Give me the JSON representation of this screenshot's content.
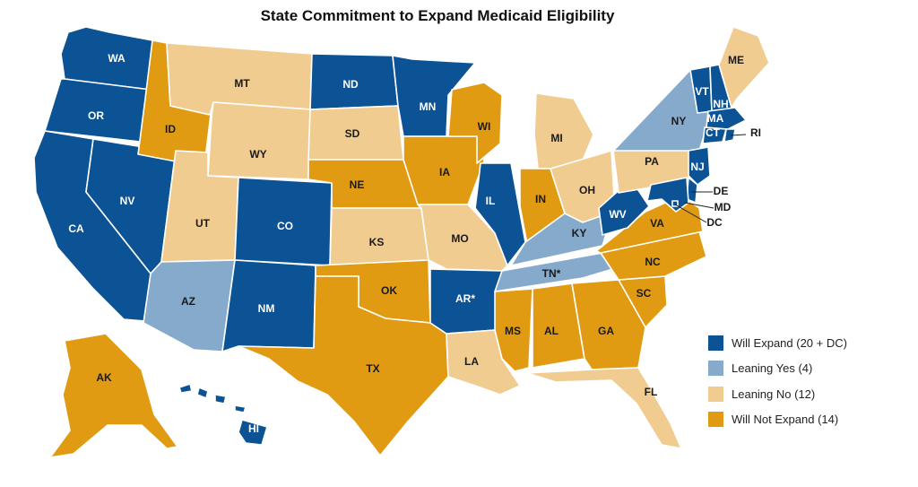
{
  "title": "State Commitment to Expand Medicaid Eligibility",
  "colors": {
    "will_expand": "#0b5394",
    "leaning_yes": "#86aacc",
    "leaning_no": "#f1cc91",
    "will_not_expand": "#e09b13"
  },
  "legend": [
    {
      "category": "will_expand",
      "label": "Will Expand (20 + DC)"
    },
    {
      "category": "leaning_yes",
      "label": "Leaning Yes (4)"
    },
    {
      "category": "leaning_no",
      "label": "Leaning No (12)"
    },
    {
      "category": "will_not_expand",
      "label": "Will Not Expand (14)"
    }
  ],
  "states": [
    {
      "id": "WA",
      "label": "WA",
      "category": "will_expand"
    },
    {
      "id": "OR",
      "label": "OR",
      "category": "will_expand"
    },
    {
      "id": "CA",
      "label": "CA",
      "category": "will_expand"
    },
    {
      "id": "NV",
      "label": "NV",
      "category": "will_expand"
    },
    {
      "id": "ID",
      "label": "ID",
      "category": "will_not_expand"
    },
    {
      "id": "MT",
      "label": "MT",
      "category": "leaning_no"
    },
    {
      "id": "WY",
      "label": "WY",
      "category": "leaning_no"
    },
    {
      "id": "UT",
      "label": "UT",
      "category": "leaning_no"
    },
    {
      "id": "AZ",
      "label": "AZ",
      "category": "leaning_yes"
    },
    {
      "id": "CO",
      "label": "CO",
      "category": "will_expand"
    },
    {
      "id": "NM",
      "label": "NM",
      "category": "will_expand"
    },
    {
      "id": "ND",
      "label": "ND",
      "category": "will_expand"
    },
    {
      "id": "SD",
      "label": "SD",
      "category": "leaning_no"
    },
    {
      "id": "NE",
      "label": "NE",
      "category": "will_not_expand"
    },
    {
      "id": "KS",
      "label": "KS",
      "category": "leaning_no"
    },
    {
      "id": "OK",
      "label": "OK",
      "category": "will_not_expand"
    },
    {
      "id": "TX",
      "label": "TX",
      "category": "will_not_expand"
    },
    {
      "id": "MN",
      "label": "MN",
      "category": "will_expand"
    },
    {
      "id": "IA",
      "label": "IA",
      "category": "will_not_expand"
    },
    {
      "id": "MO",
      "label": "MO",
      "category": "leaning_no"
    },
    {
      "id": "AR",
      "label": "AR*",
      "category": "will_expand"
    },
    {
      "id": "LA",
      "label": "LA",
      "category": "leaning_no"
    },
    {
      "id": "WI",
      "label": "WI",
      "category": "will_not_expand"
    },
    {
      "id": "IL",
      "label": "IL",
      "category": "will_expand"
    },
    {
      "id": "MI",
      "label": "MI",
      "category": "leaning_no"
    },
    {
      "id": "IN",
      "label": "IN",
      "category": "will_not_expand"
    },
    {
      "id": "OH",
      "label": "OH",
      "category": "leaning_no"
    },
    {
      "id": "KY",
      "label": "KY",
      "category": "leaning_yes"
    },
    {
      "id": "TN",
      "label": "TN*",
      "category": "leaning_yes"
    },
    {
      "id": "MS",
      "label": "MS",
      "category": "will_not_expand"
    },
    {
      "id": "AL",
      "label": "AL",
      "category": "will_not_expand"
    },
    {
      "id": "GA",
      "label": "GA",
      "category": "will_not_expand"
    },
    {
      "id": "FL",
      "label": "FL",
      "category": "leaning_no"
    },
    {
      "id": "SC",
      "label": "SC",
      "category": "will_not_expand"
    },
    {
      "id": "NC",
      "label": "NC",
      "category": "will_not_expand"
    },
    {
      "id": "VA",
      "label": "VA",
      "category": "will_not_expand"
    },
    {
      "id": "WV",
      "label": "WV",
      "category": "will_expand"
    },
    {
      "id": "PA",
      "label": "PA",
      "category": "leaning_no"
    },
    {
      "id": "NY",
      "label": "NY",
      "category": "leaning_yes"
    },
    {
      "id": "VT",
      "label": "VT",
      "category": "will_expand"
    },
    {
      "id": "NH",
      "label": "NH",
      "category": "will_expand"
    },
    {
      "id": "ME",
      "label": "ME",
      "category": "leaning_no"
    },
    {
      "id": "MA",
      "label": "MA",
      "category": "will_expand"
    },
    {
      "id": "CT",
      "label": "CT",
      "category": "will_expand"
    },
    {
      "id": "RI",
      "label": "RI",
      "category": "will_expand"
    },
    {
      "id": "NJ",
      "label": "NJ",
      "category": "will_expand"
    },
    {
      "id": "DE",
      "label": "DE",
      "category": "will_expand"
    },
    {
      "id": "MD",
      "label": "MD",
      "category": "will_expand"
    },
    {
      "id": "DC",
      "label": "DC",
      "category": "will_expand"
    },
    {
      "id": "AK",
      "label": "AK",
      "category": "will_not_expand"
    },
    {
      "id": "HI",
      "label": "HI",
      "category": "will_expand"
    }
  ]
}
